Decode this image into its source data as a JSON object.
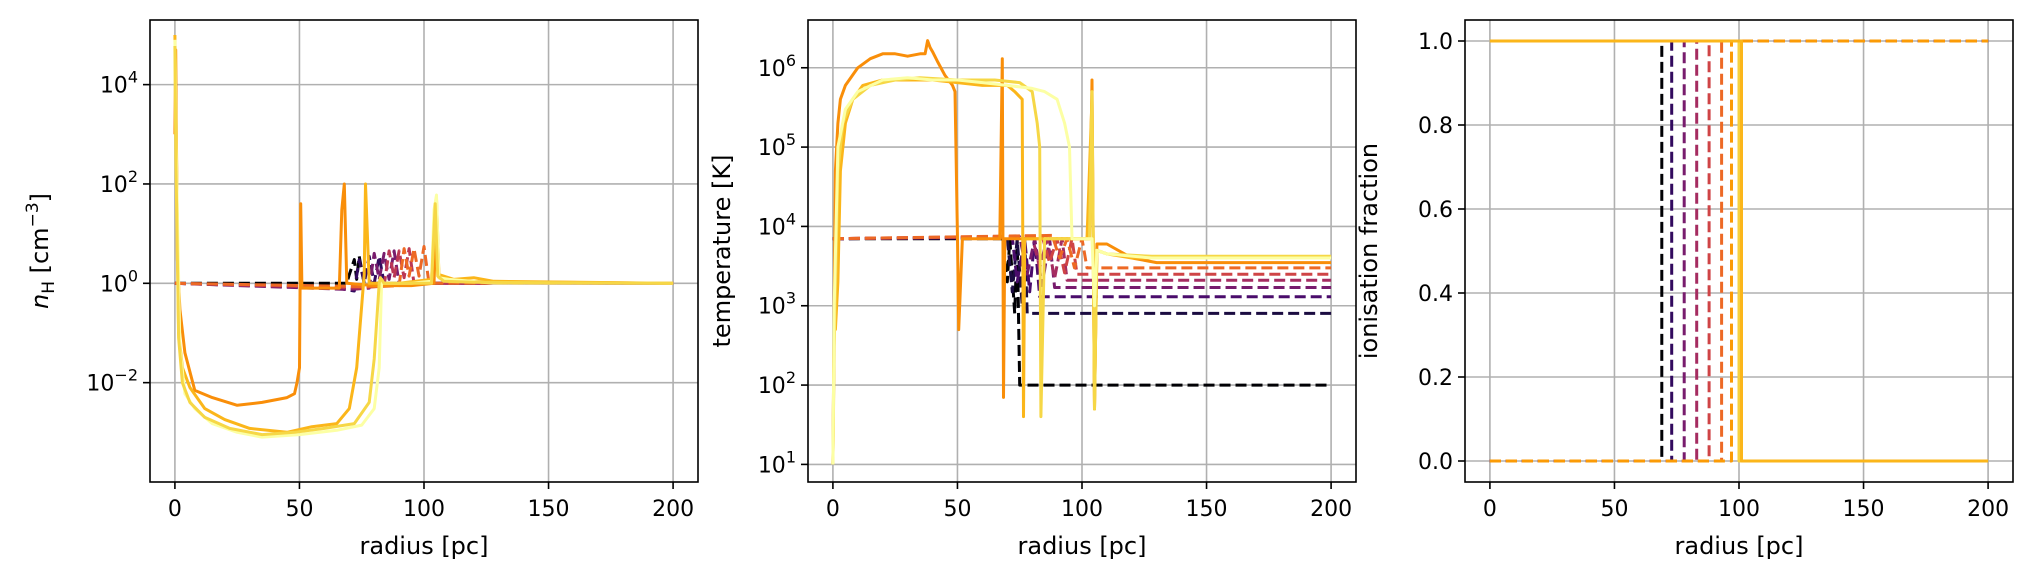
{
  "chart_data": [
    {
      "type": "line",
      "xlabel": "radius [pc]",
      "ylabel_base": "n",
      "ylabel_sub": "H",
      "ylabel_unit_open": " [cm",
      "ylabel_unit_exp": "−3",
      "ylabel_unit_close": "]",
      "xlim": [
        -10,
        210
      ],
      "ylim": [
        0.0001,
        200000
      ],
      "yscale": "log",
      "grid": true,
      "xticks": [
        0,
        50,
        100,
        150,
        200
      ],
      "xtick_labels": [
        "0",
        "50",
        "100",
        "150",
        "200"
      ],
      "yticks": [
        0.01,
        1,
        100,
        10000
      ],
      "ytick_base": "10",
      "ytick_exps": [
        "−2",
        "0",
        "2",
        "4"
      ],
      "series": [
        {
          "style": "dashed",
          "color": "#000004",
          "x": [
            0,
            69,
            70,
            72,
            73,
            74,
            76,
            200
          ],
          "y": [
            1,
            1,
            1.5,
            3,
            1.2,
            3.5,
            1,
            1
          ]
        },
        {
          "style": "dashed",
          "color": "#320a5e",
          "x": [
            0,
            65,
            72,
            74,
            76,
            78,
            80,
            82,
            84,
            200
          ],
          "y": [
            1,
            0.8,
            0.7,
            3,
            1,
            3.5,
            1,
            3.5,
            1,
            1
          ]
        },
        {
          "style": "dashed",
          "color": "#781c6d",
          "x": [
            0,
            70,
            78,
            80,
            82,
            84,
            86,
            88,
            90,
            200
          ],
          "y": [
            1,
            0.75,
            0.8,
            4,
            1.2,
            4,
            1.2,
            4.5,
            1,
            1
          ]
        },
        {
          "style": "dashed",
          "color": "#bc3754",
          "x": [
            0,
            75,
            84,
            86,
            88,
            90,
            92,
            94,
            96,
            200
          ],
          "y": [
            1,
            0.8,
            0.9,
            4.5,
            1.3,
            4.5,
            1.3,
            5,
            1,
            1
          ]
        },
        {
          "style": "dashed",
          "color": "#ed6925",
          "x": [
            0,
            80,
            90,
            92,
            94,
            96,
            98,
            100,
            102,
            200
          ],
          "y": [
            1,
            0.85,
            0.9,
            5,
            1.4,
            5,
            1.4,
            5.5,
            1,
            1
          ]
        },
        {
          "style": "solid",
          "color": "#f98e09",
          "x": [
            0,
            0.3,
            1,
            2,
            4,
            8,
            15,
            25,
            35,
            45,
            48,
            49,
            50,
            50.5,
            51,
            60,
            66,
            67,
            68,
            69,
            80,
            95,
            104,
            105,
            106,
            110,
            200
          ],
          "y": [
            1000,
            50000,
            3,
            0.3,
            0.04,
            0.007,
            0.005,
            0.0035,
            0.004,
            0.005,
            0.006,
            0.01,
            0.02,
            40,
            0.8,
            0.8,
            0.8,
            30,
            100,
            1,
            0.9,
            0.9,
            1,
            30,
            1.3,
            1.1,
            1
          ]
        },
        {
          "style": "solid",
          "color": "#fbb61a",
          "x": [
            0,
            0.5,
            1.5,
            3,
            6,
            12,
            20,
            30,
            45,
            55,
            65,
            70,
            73,
            76,
            76.5,
            78,
            90,
            103,
            105,
            106,
            112,
            120,
            128,
            200
          ],
          "y": [
            100000,
            1000,
            0.1,
            0.02,
            0.008,
            0.003,
            0.0018,
            0.0012,
            0.001,
            0.0013,
            0.0015,
            0.003,
            0.02,
            1.5,
            100,
            1,
            1,
            1.2,
            50,
            1.5,
            1.2,
            1.3,
            1.1,
            1
          ]
        },
        {
          "style": "solid",
          "color": "#fcffa4",
          "x": [
            0,
            0.5,
            2,
            4,
            8,
            15,
            25,
            35,
            50,
            65,
            75,
            80,
            82,
            83,
            83.5,
            85,
            95,
            103,
            104,
            105,
            106,
            110,
            128,
            200
          ],
          "y": [
            80000,
            500,
            0.05,
            0.006,
            0.003,
            0.0015,
            0.001,
            0.0008,
            0.0009,
            0.0011,
            0.0014,
            0.003,
            0.02,
            1.2,
            1,
            1,
            1,
            1.1,
            30,
            60,
            1.3,
            1.2,
            1,
            1
          ]
        },
        {
          "style": "solid",
          "color": "#f6d746",
          "x": [
            0,
            0.4,
            1.5,
            3,
            6,
            12,
            22,
            35,
            48,
            60,
            72,
            78,
            80,
            82,
            82.5,
            84,
            94,
            103,
            104.5,
            105.5,
            108,
            120,
            200
          ],
          "y": [
            60000,
            300,
            0.08,
            0.01,
            0.004,
            0.002,
            0.0012,
            0.0009,
            0.001,
            0.0012,
            0.0015,
            0.004,
            0.03,
            1,
            1.3,
            1,
            1,
            1,
            40,
            1.4,
            1.1,
            1.05,
            1
          ]
        }
      ]
    },
    {
      "type": "line",
      "xlabel": "radius [pc]",
      "ylabel": "temperature [K]",
      "xlim": [
        -10,
        210
      ],
      "ylim": [
        6,
        4000000
      ],
      "yscale": "log",
      "grid": true,
      "xticks": [
        0,
        50,
        100,
        150,
        200
      ],
      "xtick_labels": [
        "0",
        "50",
        "100",
        "150",
        "200"
      ],
      "yticks": [
        10,
        100,
        1000,
        10000,
        100000,
        1000000
      ],
      "ytick_base": "10",
      "ytick_exps": [
        "1",
        "2",
        "3",
        "4",
        "5",
        "6"
      ],
      "series": [
        {
          "style": "dashed",
          "color": "#000004",
          "x": [
            0,
            68,
            70,
            71,
            73,
            74,
            75,
            200
          ],
          "y": [
            7000,
            7000,
            2000,
            7000,
            800,
            7000,
            100,
            100
          ]
        },
        {
          "style": "dashed",
          "color": "#1b0c41",
          "x": [
            0,
            70,
            72,
            74,
            76,
            77,
            78,
            200
          ],
          "y": [
            7000,
            7200,
            1500,
            7000,
            1000,
            7000,
            800,
            800
          ]
        },
        {
          "style": "dashed",
          "color": "#4a0c6b",
          "x": [
            0,
            72,
            74,
            77,
            79,
            81,
            83,
            85,
            200
          ],
          "y": [
            7000,
            7300,
            2000,
            7000,
            1500,
            7000,
            1300,
            1300,
            1300
          ]
        },
        {
          "style": "dashed",
          "color": "#781c6d",
          "x": [
            0,
            75,
            78,
            81,
            84,
            87,
            89,
            91,
            200
          ],
          "y": [
            7000,
            7400,
            2500,
            7000,
            1800,
            7000,
            1700,
            1700,
            1700
          ]
        },
        {
          "style": "dashed",
          "color": "#a52c60",
          "x": [
            0,
            80,
            83,
            86,
            89,
            92,
            94,
            96,
            200
          ],
          "y": [
            7000,
            7500,
            3000,
            7000,
            2200,
            7000,
            2100,
            2100,
            2100
          ]
        },
        {
          "style": "dashed",
          "color": "#cf4446",
          "x": [
            0,
            84,
            87,
            90,
            93,
            96,
            98,
            100,
            200
          ],
          "y": [
            7000,
            7600,
            3500,
            7000,
            2600,
            7000,
            2500,
            2500,
            2500
          ]
        },
        {
          "style": "dashed",
          "color": "#ed6925",
          "x": [
            0,
            88,
            91,
            94,
            97,
            100,
            102,
            104,
            200
          ],
          "y": [
            7000,
            7700,
            4000,
            7000,
            3000,
            7000,
            3000,
            3000,
            3000
          ]
        },
        {
          "style": "solid",
          "color": "#f98e09",
          "x": [
            0,
            0.5,
            1,
            2,
            3,
            5,
            10,
            15,
            20,
            25,
            30,
            35,
            37,
            38,
            39,
            40,
            42,
            45,
            48,
            49,
            50,
            50.5,
            52,
            60,
            67,
            68,
            68.5,
            69,
            80,
            95,
            103,
            104,
            105,
            106,
            110,
            120,
            130,
            200
          ],
          "y": [
            10,
            1000,
            50000,
            200000,
            400000,
            600000,
            1000000,
            1300000,
            1500000,
            1500000,
            1400000,
            1500000,
            1500000,
            2200000,
            1800000,
            1600000,
            1200000,
            800000,
            600000,
            500000,
            7000,
            500,
            7000,
            7000,
            7000,
            1300000,
            70,
            7000,
            7000,
            7000,
            7000,
            700000,
            50,
            6000,
            6000,
            4000,
            3500,
            3500
          ]
        },
        {
          "style": "solid",
          "color": "#fbb61a",
          "x": [
            0,
            0.5,
            1,
            2,
            3,
            5,
            8,
            12,
            20,
            30,
            40,
            50,
            60,
            70,
            73,
            76,
            76.5,
            77,
            78,
            90,
            102,
            104,
            105,
            106,
            110,
            120,
            128,
            200
          ],
          "y": [
            10,
            600,
            500,
            2000,
            50000,
            200000,
            400000,
            600000,
            700000,
            700000,
            700000,
            650000,
            600000,
            600000,
            500000,
            400000,
            40,
            7000,
            7000,
            7000,
            7000,
            400000,
            50,
            5000,
            4500,
            4000,
            4000,
            4000
          ]
        },
        {
          "style": "solid",
          "color": "#f6d746",
          "x": [
            0,
            0.5,
            2,
            4,
            8,
            15,
            25,
            35,
            50,
            65,
            75,
            80,
            82,
            83,
            83.5,
            85,
            95,
            103,
            104,
            105,
            106,
            110,
            128,
            200
          ],
          "y": [
            10,
            300,
            50000,
            200000,
            400000,
            600000,
            700000,
            750000,
            700000,
            700000,
            650000,
            500000,
            200000,
            100000,
            40,
            7000,
            7000,
            7000,
            500000,
            50,
            5000,
            4500,
            4200,
            4200
          ]
        },
        {
          "style": "solid",
          "color": "#fcffa4",
          "x": [
            0,
            0.5,
            2,
            5,
            10,
            20,
            30,
            40,
            50,
            60,
            70,
            80,
            85,
            90,
            93,
            95,
            96,
            98,
            100,
            104,
            105,
            106,
            110,
            128,
            200
          ],
          "y": [
            10,
            1000,
            100000,
            300000,
            500000,
            700000,
            750000,
            700000,
            700000,
            650000,
            600000,
            550000,
            500000,
            400000,
            200000,
            100000,
            7000,
            7000,
            7000,
            7000,
            1000,
            5000,
            4500,
            4000,
            4000
          ]
        }
      ]
    },
    {
      "type": "line",
      "xlabel": "radius [pc]",
      "ylabel": "ionisation fraction",
      "xlim": [
        -10,
        210
      ],
      "ylim": [
        -0.05,
        1.05
      ],
      "yscale": "linear",
      "grid": true,
      "xticks": [
        0,
        50,
        100,
        150,
        200
      ],
      "xtick_labels": [
        "0",
        "50",
        "100",
        "150",
        "200"
      ],
      "yticks": [
        0,
        0.2,
        0.4,
        0.6,
        0.8,
        1.0
      ],
      "ytick_labels": [
        "0.0",
        "0.2",
        "0.4",
        "0.6",
        "0.8",
        "1.0"
      ],
      "series": [
        {
          "style": "dashed",
          "color": "#000004",
          "x": [
            0,
            69,
            69,
            200
          ],
          "y": [
            0,
            0,
            1,
            1
          ]
        },
        {
          "style": "dashed",
          "color": "#320a5e",
          "x": [
            0,
            73,
            73,
            200
          ],
          "y": [
            0,
            0,
            1,
            1
          ]
        },
        {
          "style": "dashed",
          "color": "#781c6d",
          "x": [
            0,
            78,
            78,
            200
          ],
          "y": [
            0,
            0,
            1,
            1
          ]
        },
        {
          "style": "dashed",
          "color": "#a52c60",
          "x": [
            0,
            83,
            83,
            200
          ],
          "y": [
            0,
            0,
            1,
            1
          ]
        },
        {
          "style": "dashed",
          "color": "#cf4446",
          "x": [
            0,
            88,
            88,
            200
          ],
          "y": [
            0,
            0,
            1,
            1
          ]
        },
        {
          "style": "dashed",
          "color": "#ed6925",
          "x": [
            0,
            93,
            93,
            200
          ],
          "y": [
            0,
            0,
            1,
            1
          ]
        },
        {
          "style": "dashed",
          "color": "#fb9b06",
          "x": [
            0,
            97,
            97,
            200
          ],
          "y": [
            0,
            0,
            1,
            1
          ]
        },
        {
          "style": "solid",
          "color": "#f7d13d",
          "x": [
            0,
            100,
            100,
            200
          ],
          "y": [
            1,
            1,
            0,
            0
          ]
        },
        {
          "style": "solid",
          "color": "#fbb61a",
          "x": [
            0,
            101,
            101,
            200
          ],
          "y": [
            1,
            1,
            0,
            0
          ]
        }
      ]
    }
  ]
}
